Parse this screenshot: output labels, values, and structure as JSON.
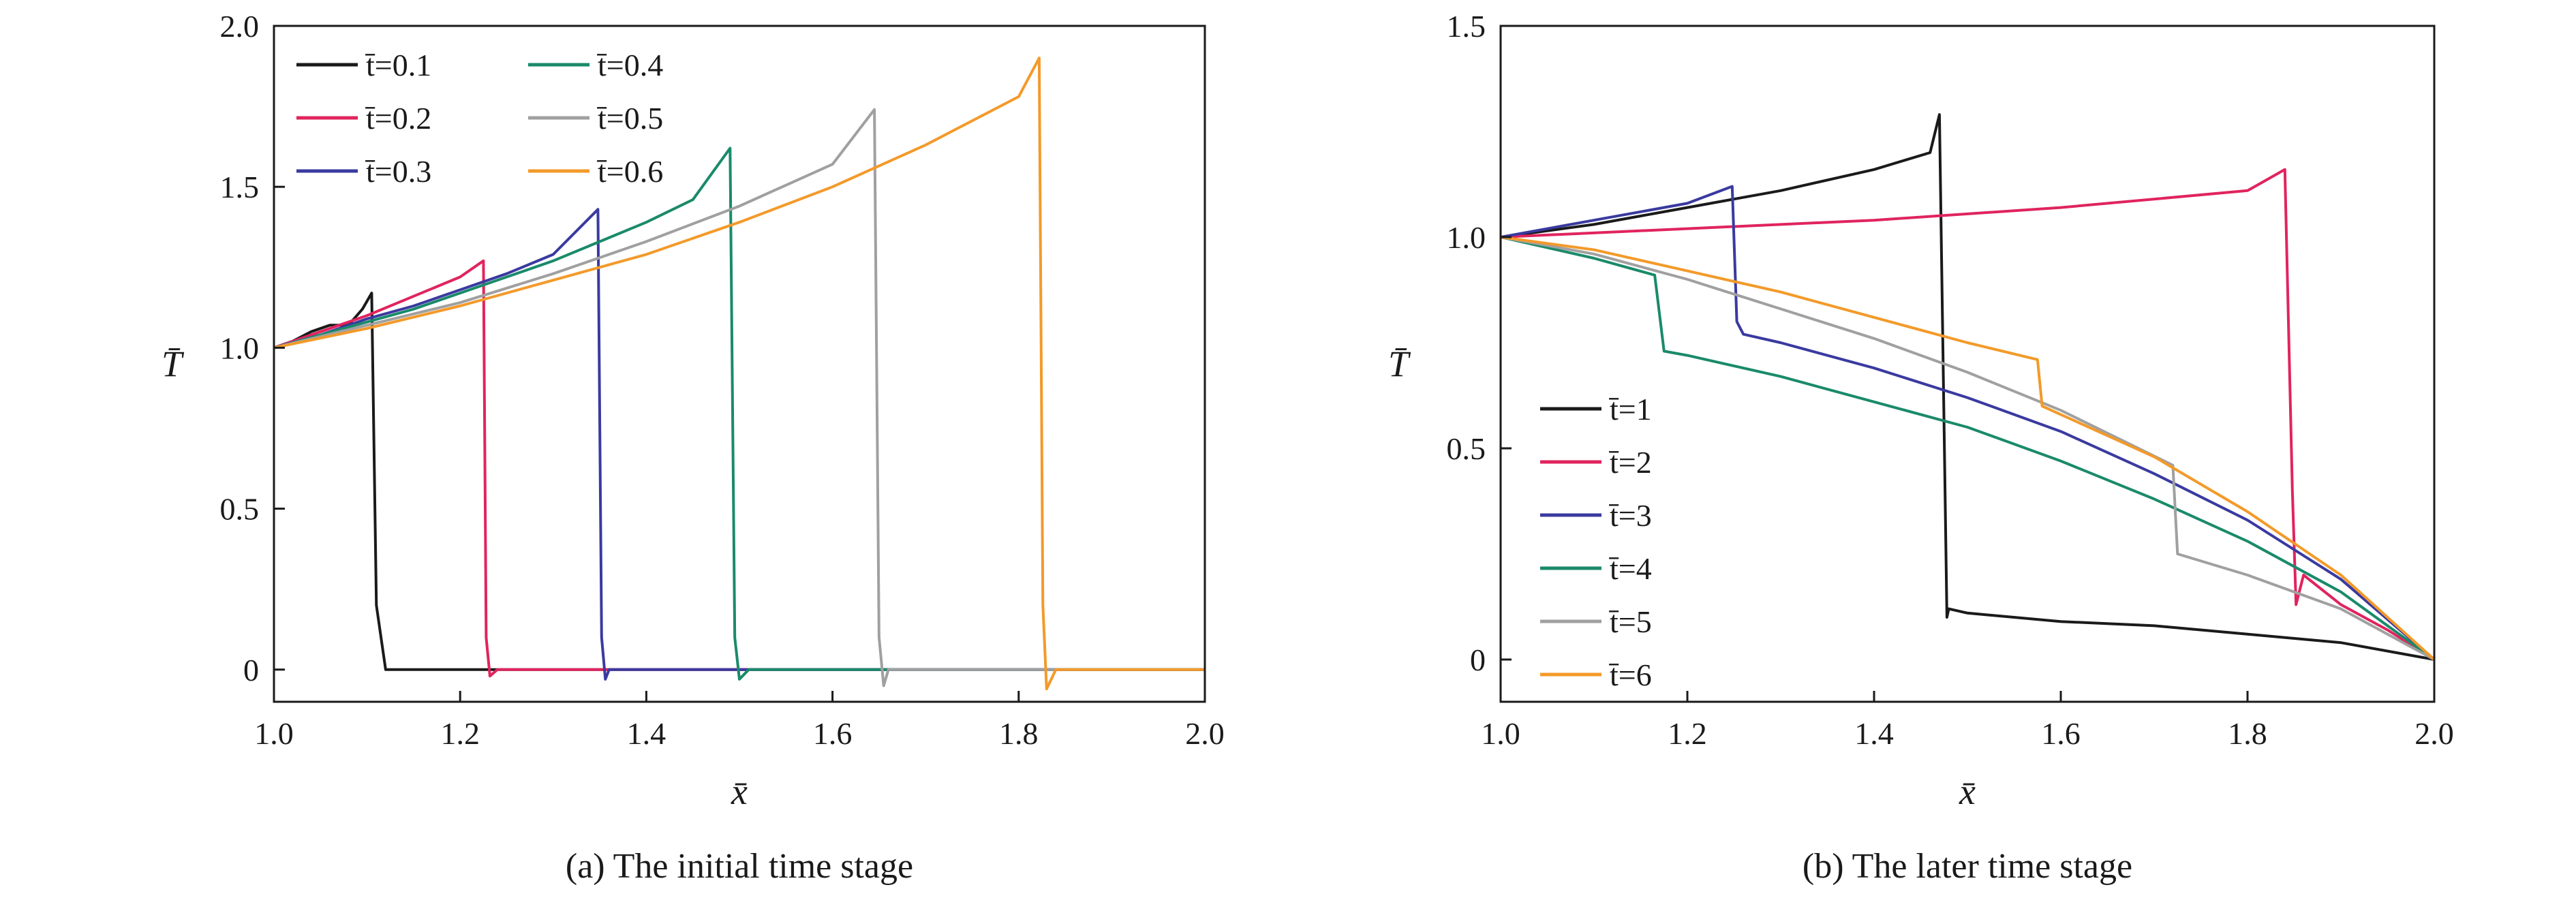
{
  "chart_data": [
    {
      "type": "line",
      "caption": "(a) The initial time stage",
      "xlabel": "x̄",
      "ylabel": "T̄",
      "xlim": [
        1.0,
        2.0
      ],
      "ylim": [
        -0.1,
        2.0
      ],
      "xticks": [
        "1.0",
        "1.2",
        "1.4",
        "1.6",
        "1.8",
        "2.0"
      ],
      "yticks": [
        "0",
        "0.5",
        "1.0",
        "1.5",
        "2.0"
      ],
      "legend_placement": "top-left",
      "legend_labels": [
        "t̄=0.1",
        "t̄=0.2",
        "t̄=0.3",
        "t̄=0.4",
        "t̄=0.5",
        "t̄=0.6"
      ],
      "series": [
        {
          "name": "t̄=0.1",
          "color": "#1a1a1a",
          "x": [
            1.0,
            1.02,
            1.04,
            1.06,
            1.08,
            1.095,
            1.105,
            1.11,
            1.12,
            1.14,
            1.2,
            1.3,
            1.4,
            1.5,
            1.6,
            1.7,
            1.8,
            1.9,
            2.0
          ],
          "y": [
            1.0,
            1.02,
            1.05,
            1.07,
            1.07,
            1.12,
            1.17,
            0.2,
            0.0,
            0.0,
            0.0,
            0.0,
            0.0,
            0.0,
            0.0,
            0.0,
            0.0,
            0.0,
            0.0
          ]
        },
        {
          "name": "t̄=0.2",
          "color": "#e0245e",
          "x": [
            1.0,
            1.05,
            1.1,
            1.15,
            1.2,
            1.225,
            1.228,
            1.232,
            1.24,
            1.3,
            1.4,
            1.5,
            1.6,
            1.7,
            1.8,
            1.9,
            2.0
          ],
          "y": [
            1.0,
            1.05,
            1.1,
            1.16,
            1.22,
            1.27,
            0.1,
            -0.02,
            0.0,
            0.0,
            0.0,
            0.0,
            0.0,
            0.0,
            0.0,
            0.0,
            0.0
          ]
        },
        {
          "name": "t̄=0.3",
          "color": "#3a3aa0",
          "x": [
            1.0,
            1.05,
            1.1,
            1.15,
            1.2,
            1.25,
            1.3,
            1.348,
            1.352,
            1.356,
            1.36,
            1.4,
            1.5,
            1.6,
            1.7,
            1.8,
            1.9,
            2.0
          ],
          "y": [
            1.0,
            1.04,
            1.09,
            1.13,
            1.18,
            1.23,
            1.29,
            1.43,
            0.1,
            -0.03,
            0.0,
            0.0,
            0.0,
            0.0,
            0.0,
            0.0,
            0.0,
            0.0
          ]
        },
        {
          "name": "t̄=0.4",
          "color": "#1a8a6a",
          "x": [
            1.0,
            1.05,
            1.1,
            1.15,
            1.2,
            1.25,
            1.3,
            1.35,
            1.4,
            1.45,
            1.49,
            1.495,
            1.5,
            1.51,
            1.6,
            1.7,
            1.8,
            1.9,
            2.0
          ],
          "y": [
            1.0,
            1.04,
            1.08,
            1.12,
            1.17,
            1.22,
            1.27,
            1.33,
            1.39,
            1.46,
            1.62,
            0.1,
            -0.03,
            0.0,
            0.0,
            0.0,
            0.0,
            0.0,
            0.0
          ]
        },
        {
          "name": "t̄=0.5",
          "color": "#a0a0a0",
          "x": [
            1.0,
            1.1,
            1.2,
            1.3,
            1.4,
            1.5,
            1.6,
            1.645,
            1.65,
            1.655,
            1.66,
            1.7,
            1.8,
            1.9,
            2.0
          ],
          "y": [
            1.0,
            1.07,
            1.14,
            1.23,
            1.33,
            1.44,
            1.57,
            1.74,
            0.1,
            -0.05,
            0.0,
            0.0,
            0.0,
            0.0,
            0.0
          ]
        },
        {
          "name": "t̄=0.6",
          "color": "#f39a2a",
          "x": [
            1.0,
            1.1,
            1.2,
            1.3,
            1.4,
            1.5,
            1.6,
            1.7,
            1.8,
            1.822,
            1.826,
            1.83,
            1.84,
            1.9,
            2.0
          ],
          "y": [
            1.0,
            1.06,
            1.13,
            1.21,
            1.29,
            1.39,
            1.5,
            1.63,
            1.78,
            1.9,
            0.2,
            -0.06,
            0.0,
            0.0,
            0.0
          ]
        }
      ]
    },
    {
      "type": "line",
      "caption": "(b) The later time stage",
      "xlabel": "x̄",
      "ylabel": "T̄",
      "xlim": [
        1.0,
        2.0
      ],
      "ylim": [
        -0.1,
        1.5
      ],
      "xticks": [
        "1.0",
        "1.2",
        "1.4",
        "1.6",
        "1.8",
        "2.0"
      ],
      "yticks": [
        "0",
        "0.5",
        "1.0",
        "1.5"
      ],
      "legend_placement": "bottom-left",
      "legend_labels": [
        "t̄=1",
        "t̄=2",
        "t̄=3",
        "t̄=4",
        "t̄=5",
        "t̄=6"
      ],
      "series": [
        {
          "name": "t̄=1",
          "color": "#1a1a1a",
          "x": [
            1.0,
            1.1,
            1.2,
            1.3,
            1.4,
            1.46,
            1.47,
            1.478,
            1.48,
            1.5,
            1.6,
            1.7,
            1.8,
            1.9,
            2.0
          ],
          "y": [
            1.0,
            1.03,
            1.07,
            1.11,
            1.16,
            1.2,
            1.29,
            0.1,
            0.12,
            0.11,
            0.09,
            0.08,
            0.06,
            0.04,
            0.0
          ]
        },
        {
          "name": "t̄=2",
          "color": "#e0245e",
          "x": [
            1.0,
            1.2,
            1.4,
            1.6,
            1.8,
            1.84,
            1.848,
            1.852,
            1.86,
            1.9,
            1.95,
            2.0
          ],
          "y": [
            1.0,
            1.02,
            1.04,
            1.07,
            1.11,
            1.16,
            0.4,
            0.13,
            0.2,
            0.13,
            0.07,
            0.0
          ]
        },
        {
          "name": "t̄=3",
          "color": "#3a3aa0",
          "x": [
            1.0,
            1.1,
            1.2,
            1.248,
            1.253,
            1.26,
            1.3,
            1.4,
            1.5,
            1.6,
            1.7,
            1.8,
            1.9,
            2.0
          ],
          "y": [
            1.0,
            1.04,
            1.08,
            1.12,
            0.8,
            0.77,
            0.75,
            0.69,
            0.62,
            0.54,
            0.44,
            0.33,
            0.19,
            0.0
          ]
        },
        {
          "name": "t̄=4",
          "color": "#1a8a6a",
          "x": [
            1.0,
            1.1,
            1.165,
            1.175,
            1.2,
            1.3,
            1.4,
            1.5,
            1.6,
            1.7,
            1.8,
            1.9,
            2.0
          ],
          "y": [
            1.0,
            0.95,
            0.91,
            0.73,
            0.72,
            0.67,
            0.61,
            0.55,
            0.47,
            0.38,
            0.28,
            0.16,
            0.0
          ]
        },
        {
          "name": "t̄=5",
          "color": "#a0a0a0",
          "x": [
            1.0,
            1.1,
            1.2,
            1.3,
            1.4,
            1.5,
            1.6,
            1.72,
            1.725,
            1.8,
            1.9,
            2.0
          ],
          "y": [
            1.0,
            0.96,
            0.9,
            0.83,
            0.76,
            0.68,
            0.59,
            0.46,
            0.25,
            0.2,
            0.12,
            0.0
          ]
        },
        {
          "name": "t̄=6",
          "color": "#f39a2a",
          "x": [
            1.0,
            1.1,
            1.2,
            1.3,
            1.4,
            1.5,
            1.575,
            1.58,
            1.6,
            1.7,
            1.8,
            1.9,
            2.0
          ],
          "y": [
            1.0,
            0.97,
            0.92,
            0.87,
            0.81,
            0.75,
            0.71,
            0.6,
            0.58,
            0.48,
            0.35,
            0.2,
            0.0
          ]
        }
      ]
    }
  ]
}
